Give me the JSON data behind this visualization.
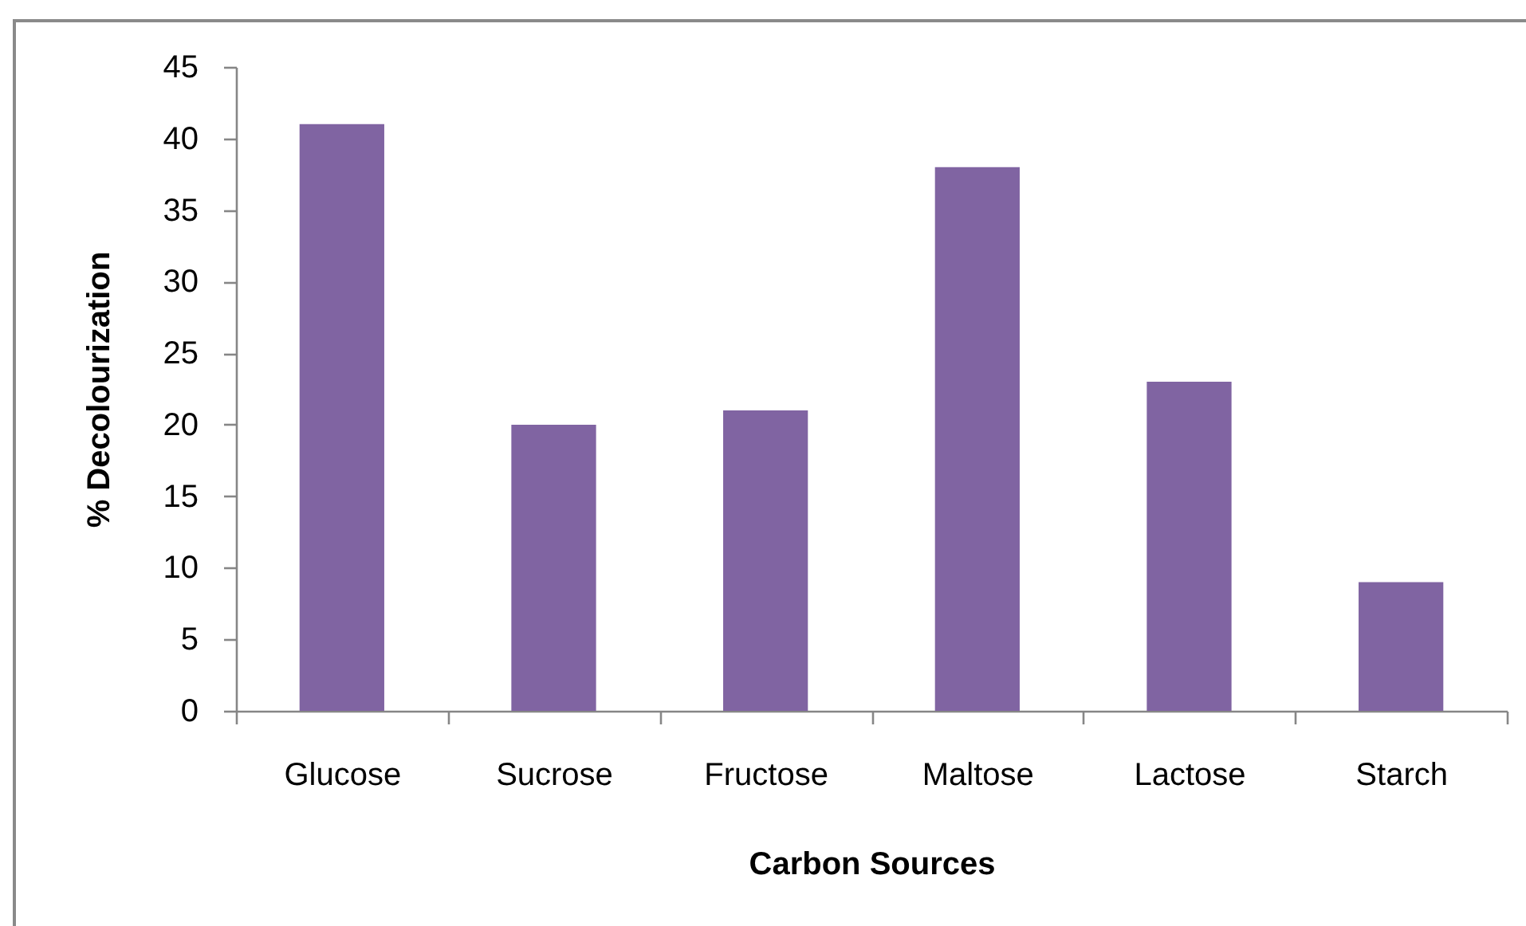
{
  "chart_data": {
    "type": "bar",
    "xlabel": "Carbon Sources",
    "ylabel": "% Decolourization",
    "categories": [
      "Glucose",
      "Sucrose",
      "Fructose",
      "Maltose",
      "Lactose",
      "Starch"
    ],
    "values": [
      41,
      20,
      21,
      38,
      23,
      9
    ],
    "color": "#8064a2",
    "ylim": [
      0,
      45
    ],
    "yticks": [
      0,
      5,
      10,
      15,
      20,
      25,
      30,
      35,
      40,
      45
    ]
  }
}
